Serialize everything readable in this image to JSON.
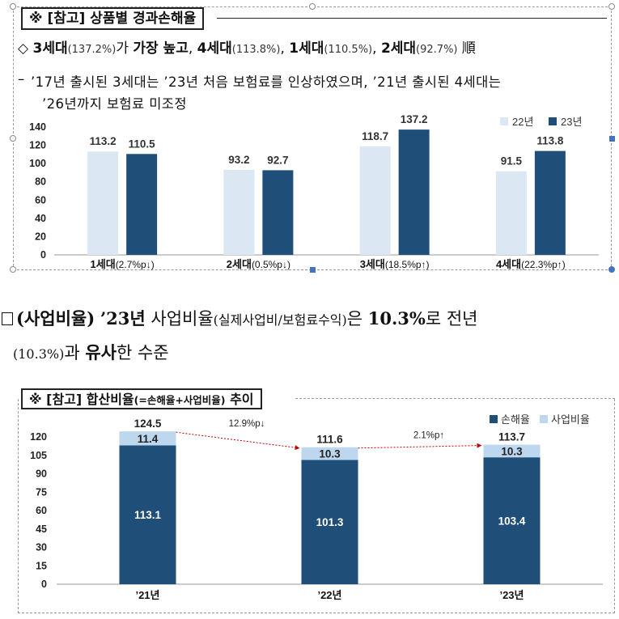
{
  "top": {
    "title": "※ [참고] 상품별 경과손해율",
    "summary": {
      "g3": "3세대",
      "g3v": "(137.2%)",
      "t1": "가 ",
      "kw": "가장 높고",
      "t2": ", ",
      "g4": "4세대",
      "g4v": "(113.8%)",
      "t3": ", ",
      "g1": "1세대",
      "g1v": "(110.5%)",
      "t4": ", ",
      "g2": "2세대",
      "g2v": "(92.7%)",
      "t5": " 順"
    },
    "note_line1": "’17년 출시된 3세대는 ’23년 처음 보험료를 인상하였으며, ’21년 출시된 4세대는",
    "note_line2": "’26년까지 보험료 미조정"
  },
  "middle": {
    "label": "(사업비율)",
    "year": "’23년",
    "subject": "사업비율",
    "paren": "(실제사업비/보험료수익)",
    "t1": "은 ",
    "value": "10.3%",
    "t2": "로 전년",
    "line2_a": "(10.3%)",
    "line2_b": "과 ",
    "line2_c": "유사",
    "line2_d": "한 수준"
  },
  "bottom": {
    "title_a": "※ [참고] 합산비율",
    "title_b": "(=손해율+사업비율)",
    "title_c": " 추이"
  },
  "chart_data": [
    {
      "type": "bar",
      "categories": [
        "1세대",
        "2세대",
        "3세대",
        "4세대"
      ],
      "category_notes": [
        "(2.7%p↓)",
        "(0.5%p↓)",
        "(18.5%p↑)",
        "(22.3%p↑)"
      ],
      "series": [
        {
          "name": "22년",
          "values": [
            113.2,
            93.2,
            118.7,
            91.5
          ],
          "color": "#dce7f4"
        },
        {
          "name": "23년",
          "values": [
            110.5,
            92.7,
            137.2,
            113.8
          ],
          "color": "#1f4e79"
        }
      ],
      "ylim": [
        0,
        140
      ],
      "yticks": [
        0,
        20,
        40,
        60,
        80,
        100,
        120,
        140
      ],
      "grid": false,
      "legend": "top-right"
    },
    {
      "type": "bar",
      "stacked": true,
      "categories": [
        "’21년",
        "’22년",
        "’23년"
      ],
      "series": [
        {
          "name": "손해율",
          "values": [
            113.1,
            101.3,
            103.4
          ],
          "color": "#1f4e79"
        },
        {
          "name": "사업비율",
          "values": [
            11.4,
            10.3,
            10.3
          ],
          "color": "#bdd7ee"
        }
      ],
      "totals": [
        124.5,
        111.6,
        113.7
      ],
      "changes": [
        "12.9%p↓",
        "2.1%p↑"
      ],
      "ylim": [
        0,
        130
      ],
      "yticks": [
        0,
        15,
        30,
        45,
        60,
        75,
        90,
        105,
        120
      ],
      "grid": false,
      "legend": "top-right"
    }
  ]
}
